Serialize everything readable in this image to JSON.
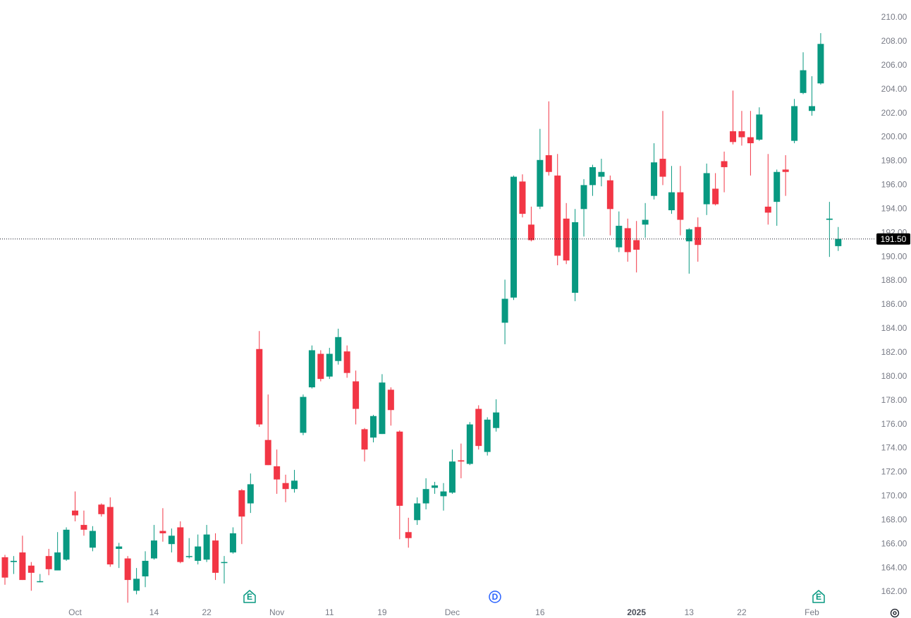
{
  "chart_data": {
    "type": "candlestick",
    "categories": [
      null,
      null,
      null,
      null,
      null,
      null,
      null,
      null,
      "Oct",
      null,
      null,
      null,
      null,
      null,
      null,
      null,
      null,
      "14",
      null,
      null,
      null,
      null,
      null,
      "22",
      null,
      null,
      null,
      null,
      null,
      null,
      null,
      "Nov",
      null,
      null,
      null,
      null,
      null,
      "11",
      null,
      null,
      null,
      null,
      null,
      "19",
      null,
      null,
      null,
      null,
      null,
      null,
      null,
      "Dec",
      null,
      null,
      null,
      null,
      null,
      null,
      null,
      null,
      null,
      "16",
      null,
      null,
      null,
      null,
      null,
      null,
      null,
      null,
      null,
      null,
      "2025",
      null,
      null,
      null,
      null,
      null,
      "13",
      null,
      null,
      null,
      null,
      null,
      "22",
      null,
      null,
      null,
      null,
      null,
      null,
      null,
      "Feb",
      null,
      null,
      null
    ],
    "open": [
      164.9,
      164.5,
      165.3,
      164.2,
      162.9,
      165.0,
      163.8,
      164.7,
      168.8,
      167.6,
      165.7,
      169.3,
      169.1,
      165.6,
      164.8,
      162.1,
      163.3,
      164.8,
      167.1,
      166.0,
      167.4,
      165.0,
      164.6,
      164.7,
      166.3,
      164.5,
      165.3,
      170.5,
      169.4,
      182.3,
      174.7,
      172.5,
      171.1,
      170.6,
      175.3,
      179.1,
      181.9,
      180.0,
      181.3,
      182.1,
      179.6,
      175.6,
      174.9,
      175.2,
      178.9,
      175.4,
      167.0,
      168.0,
      169.4,
      170.7,
      170.0,
      170.3,
      173.0,
      172.7,
      177.3,
      173.7,
      175.7,
      184.5,
      186.6,
      196.3,
      192.7,
      194.2,
      198.5,
      196.8,
      193.2,
      187.0,
      194.0,
      196.0,
      196.7,
      196.4,
      190.8,
      192.4,
      191.4,
      192.7,
      195.1,
      198.2,
      193.9,
      195.4,
      191.3,
      192.5,
      194.4,
      195.7,
      198.0,
      200.5,
      200.5,
      200.0,
      199.8,
      194.2,
      194.6,
      197.3,
      199.7,
      203.7,
      202.2,
      204.5,
      193.1,
      190.9
    ],
    "high": [
      165.1,
      165.0,
      166.7,
      164.5,
      163.5,
      165.6,
      167.0,
      167.4,
      170.4,
      168.8,
      167.5,
      169.4,
      169.9,
      166.1,
      165.0,
      164.0,
      165.4,
      167.6,
      169.0,
      167.3,
      167.9,
      166.5,
      166.8,
      167.6,
      166.9,
      165.0,
      167.4,
      170.6,
      171.9,
      183.8,
      178.5,
      173.9,
      171.8,
      172.2,
      178.5,
      182.6,
      182.2,
      182.4,
      184.0,
      182.6,
      180.5,
      175.7,
      176.8,
      180.2,
      179.1,
      175.5,
      168.2,
      169.9,
      171.5,
      171.2,
      171.1,
      173.9,
      174.4,
      176.2,
      177.6,
      176.6,
      178.1,
      188.1,
      196.8,
      196.9,
      194.2,
      200.7,
      203.0,
      198.6,
      194.5,
      194.0,
      196.5,
      197.7,
      198.2,
      196.8,
      193.8,
      193.2,
      193.0,
      194.5,
      199.5,
      202.2,
      197.6,
      197.6,
      192.4,
      193.3,
      197.8,
      197.0,
      198.8,
      203.9,
      202.2,
      202.2,
      202.5,
      198.6,
      197.3,
      198.5,
      203.2,
      207.1,
      205.1,
      208.7,
      194.6,
      192.5
    ],
    "low": [
      162.6,
      163.5,
      163.0,
      162.1,
      162.8,
      163.4,
      163.8,
      164.6,
      167.9,
      166.7,
      165.4,
      168.3,
      164.1,
      164.0,
      161.1,
      161.8,
      162.4,
      164.7,
      166.2,
      165.3,
      164.4,
      164.8,
      164.3,
      164.5,
      163.0,
      162.7,
      165.2,
      166.0,
      168.6,
      175.8,
      172.6,
      170.2,
      169.5,
      170.3,
      175.1,
      179.0,
      179.6,
      179.8,
      181.0,
      179.9,
      176.0,
      172.9,
      174.5,
      175.2,
      175.9,
      166.4,
      165.7,
      167.6,
      168.9,
      170.2,
      168.8,
      170.2,
      171.5,
      172.6,
      173.9,
      173.4,
      175.4,
      182.7,
      186.4,
      193.3,
      191.3,
      194.0,
      196.8,
      189.3,
      189.4,
      186.3,
      191.7,
      195.1,
      195.9,
      191.8,
      190.4,
      189.6,
      188.7,
      191.6,
      194.8,
      196.0,
      193.6,
      191.8,
      188.6,
      189.6,
      193.5,
      194.3,
      195.4,
      199.4,
      199.3,
      196.8,
      199.7,
      192.7,
      192.6,
      195.1,
      199.5,
      203.6,
      201.8,
      204.4,
      190.0,
      190.5
    ],
    "close": [
      163.2,
      164.6,
      163.0,
      163.6,
      162.9,
      163.9,
      165.3,
      167.2,
      168.4,
      167.2,
      167.1,
      168.5,
      164.3,
      165.8,
      163.0,
      163.1,
      164.6,
      166.3,
      166.9,
      166.7,
      164.5,
      165.0,
      165.8,
      166.8,
      163.6,
      164.5,
      166.9,
      168.3,
      171.0,
      176.0,
      172.6,
      171.4,
      170.6,
      171.3,
      178.3,
      182.2,
      179.8,
      181.9,
      183.3,
      180.3,
      177.3,
      173.9,
      176.7,
      179.5,
      177.2,
      169.2,
      166.5,
      169.4,
      170.6,
      170.9,
      170.4,
      172.9,
      172.9,
      176.0,
      174.2,
      176.4,
      177.0,
      186.5,
      196.7,
      193.6,
      191.4,
      198.1,
      197.1,
      190.1,
      189.7,
      192.9,
      196.0,
      197.5,
      197.1,
      194.0,
      192.6,
      190.4,
      190.6,
      193.1,
      197.9,
      196.7,
      195.4,
      193.1,
      192.3,
      191.0,
      197.0,
      194.4,
      197.5,
      199.6,
      200.0,
      199.5,
      201.9,
      193.7,
      197.1,
      197.1,
      202.6,
      205.6,
      202.6,
      207.8,
      193.2,
      191.5
    ],
    "up_color": "#089981",
    "down_color": "#f23645",
    "ylim": [
      161.06,
      211.47
    ],
    "yticks": [
      {
        "value": 162,
        "label": "162.00"
      },
      {
        "value": 164,
        "label": "164.00"
      },
      {
        "value": 166,
        "label": "166.00"
      },
      {
        "value": 168,
        "label": "168.00"
      },
      {
        "value": 170,
        "label": "170.00"
      },
      {
        "value": 172,
        "label": "172.00"
      },
      {
        "value": 174,
        "label": "174.00"
      },
      {
        "value": 176,
        "label": "176.00"
      },
      {
        "value": 178,
        "label": "178.00"
      },
      {
        "value": 180,
        "label": "180.00"
      },
      {
        "value": 182,
        "label": "182.00"
      },
      {
        "value": 184,
        "label": "184.00"
      },
      {
        "value": 186,
        "label": "186.00"
      },
      {
        "value": 188,
        "label": "188.00"
      },
      {
        "value": 190,
        "label": "190.00"
      },
      {
        "value": 192,
        "label": "192.00"
      },
      {
        "value": 194,
        "label": "194.00"
      },
      {
        "value": 196,
        "label": "196.00"
      },
      {
        "value": 198,
        "label": "198.00"
      },
      {
        "value": 200,
        "label": "200.00"
      },
      {
        "value": 202,
        "label": "202.00"
      },
      {
        "value": 204,
        "label": "204.00"
      },
      {
        "value": 206,
        "label": "206.00"
      },
      {
        "value": 208,
        "label": "208.00"
      },
      {
        "value": 210,
        "label": "210.00"
      }
    ],
    "last_price": {
      "value": 191.5,
      "label": "191.50"
    },
    "events": [
      "E",
      "D",
      "E"
    ]
  }
}
